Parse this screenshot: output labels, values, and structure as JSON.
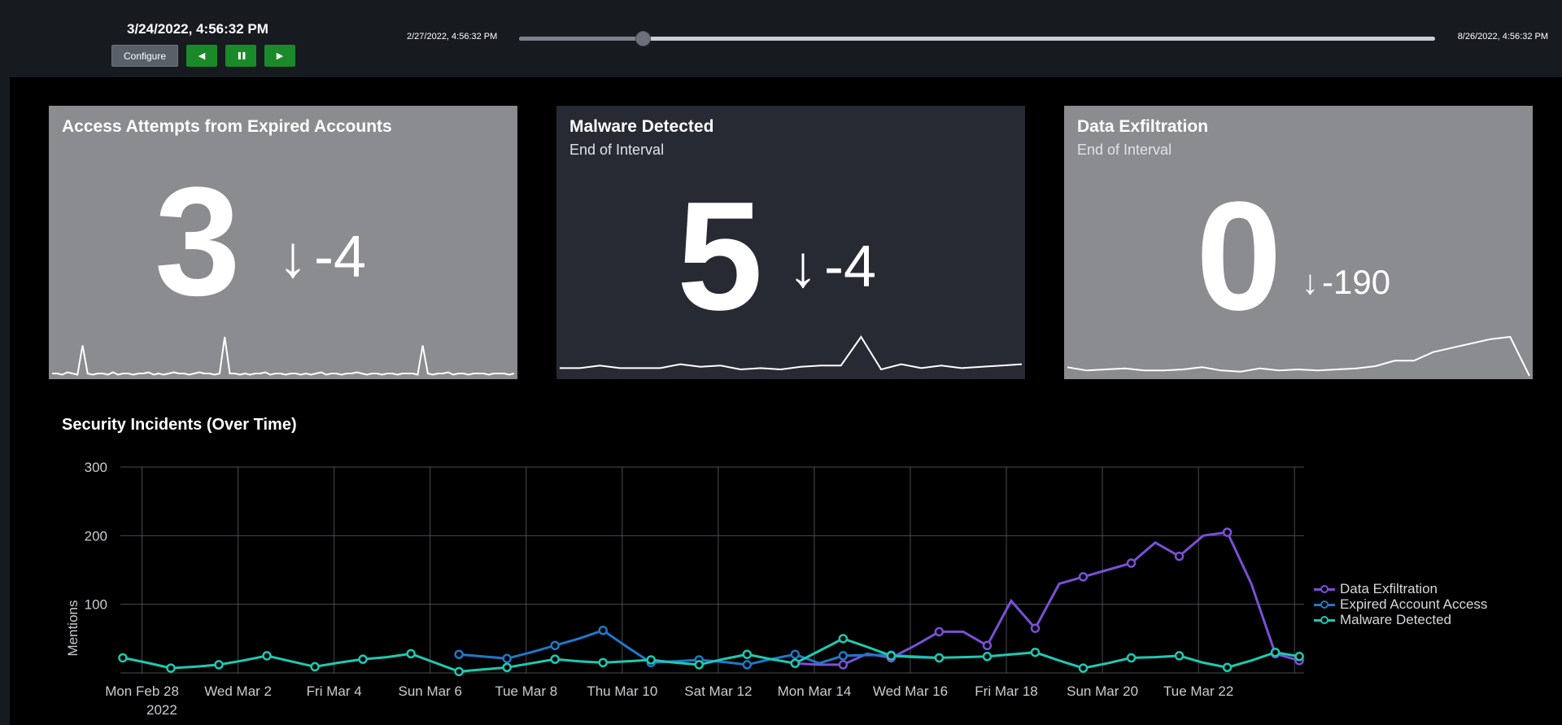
{
  "controls": {
    "current_time": "3/24/2022, 4:56:32 PM",
    "configure_label": "Configure",
    "prev_symbol": "◀",
    "pause_symbol": "❚❚",
    "next_symbol": "▶",
    "range_start": "2/27/2022, 4:56:32 PM",
    "range_end": "8/26/2022, 4:56:32 PM",
    "slider_position": 0.135
  },
  "panels": [
    {
      "title": "Access Attempts from Expired Accounts",
      "subtitle": "",
      "value": "3",
      "delta_arrow": "↓",
      "delta": "-4",
      "spark": [
        2,
        2,
        1,
        3,
        2,
        1,
        25,
        2,
        1,
        2,
        2,
        1,
        3,
        1,
        2,
        2,
        1,
        2,
        2,
        3,
        1,
        2,
        1,
        2,
        3,
        2,
        2,
        1,
        2,
        3,
        2,
        2,
        1,
        2,
        32,
        2,
        2,
        1,
        2,
        1,
        2,
        2,
        3,
        1,
        2,
        2,
        1,
        2,
        2,
        1,
        2,
        1,
        2,
        3,
        1,
        2,
        2,
        1,
        2,
        2,
        3,
        2,
        1,
        2,
        2,
        1,
        2,
        2,
        1,
        2,
        2,
        2,
        1,
        25,
        2,
        1,
        2,
        2,
        3,
        1,
        2,
        2,
        1,
        2,
        2,
        2,
        1,
        2,
        2,
        2,
        1,
        2
      ],
      "colors": {
        "background": "#8b8c90"
      }
    },
    {
      "title": "Malware Detected",
      "subtitle": "End of Interval",
      "value": "5",
      "delta_arrow": "↓",
      "delta": "-4",
      "spark": [
        6,
        6,
        8,
        6,
        6,
        6,
        9,
        7,
        8,
        5,
        6,
        5,
        7,
        8,
        8,
        30,
        5,
        9,
        6,
        8,
        6,
        7,
        8,
        9
      ],
      "colors": {
        "background": "#272a33"
      }
    },
    {
      "title": "Data Exfiltration",
      "subtitle": "End of Interval",
      "value": "0",
      "delta_arrow": "↓",
      "delta": "-190",
      "spark": [
        8,
        5,
        6,
        7,
        5,
        5,
        6,
        8,
        5,
        4,
        7,
        5,
        6,
        5,
        6,
        7,
        9,
        14,
        14,
        22,
        26,
        30,
        34,
        36,
        0
      ],
      "colors": {
        "background": "#8b8c90"
      }
    }
  ],
  "chart_data": {
    "type": "line",
    "title": "Security Incidents (Over Time)",
    "ylabel": "Mentions",
    "xlabel": "",
    "ylim": [
      0,
      300
    ],
    "yticks": [
      "300",
      "200",
      "100"
    ],
    "ytick_values": [
      300,
      200,
      100
    ],
    "xticks": [
      "Mon Feb 28",
      "Wed Mar 2",
      "Fri Mar 4",
      "Sun Mar 6",
      "Tue Mar 8",
      "Thu Mar 10",
      "Sat Mar 12",
      "Mon Mar 14",
      "Wed Mar 16",
      "Fri Mar 18",
      "Sun Mar 20",
      "Tue Mar 22"
    ],
    "xticks_day_index": [
      1,
      3,
      5,
      7,
      9,
      11,
      13,
      15,
      17,
      19,
      21,
      23
    ],
    "year_label": "2022",
    "x_day_range": [
      -0.05,
      24.6
    ],
    "series": [
      {
        "name": "Data Exfiltration",
        "color": "#7b4fd6",
        "x": [
          14,
          14.5,
          15,
          15.5,
          16,
          16.5,
          17,
          17.5,
          18,
          18.5,
          19,
          19.5,
          20,
          20.5,
          21,
          21.5,
          22,
          22.5,
          23,
          23.5,
          24,
          24.5
        ],
        "values": [
          14,
          12,
          12,
          28,
          22,
          40,
          60,
          60,
          40,
          105,
          65,
          130,
          140,
          150,
          160,
          190,
          170,
          200,
          205,
          130,
          28,
          18
        ]
      },
      {
        "name": "Expired Account Access",
        "color": "#1f78c8",
        "x": [
          7,
          7.5,
          8,
          8.5,
          9,
          9.5,
          10,
          10.5,
          11,
          11.5,
          12,
          12.5,
          13,
          13.5,
          14,
          14.5,
          15,
          15.5,
          16,
          16.5,
          17
        ],
        "values": [
          27,
          24,
          21,
          30,
          40,
          50,
          62,
          38,
          15,
          17,
          19,
          16,
          12,
          20,
          27,
          14,
          25,
          26,
          26,
          24,
          22
        ]
      },
      {
        "name": "Malware Detected",
        "color": "#1ec9b0",
        "x": [
          0,
          0.5,
          1,
          1.5,
          2,
          2.5,
          3,
          3.5,
          4,
          4.5,
          5,
          5.5,
          6,
          6.5,
          7,
          7.5,
          8,
          8.5,
          9,
          9.5,
          10,
          10.5,
          11,
          11.5,
          12,
          12.5,
          13,
          13.5,
          14,
          14.5,
          15,
          15.5,
          16,
          16.5,
          17,
          17.5,
          18,
          18.5,
          19,
          19.5,
          20,
          20.5,
          21,
          21.5,
          22,
          22.5,
          23,
          23.5,
          24,
          24.5
        ],
        "values": [
          22,
          15,
          7,
          9,
          12,
          18,
          25,
          17,
          9,
          15,
          20,
          23,
          28,
          15,
          2,
          5,
          8,
          14,
          20,
          17,
          15,
          17,
          19,
          15,
          12,
          20,
          27,
          20,
          14,
          32,
          50,
          38,
          25,
          23,
          22,
          23,
          24,
          27,
          30,
          18,
          7,
          14,
          22,
          23,
          25,
          15,
          8,
          18,
          30,
          24
        ]
      }
    ],
    "legend_position": "right"
  }
}
